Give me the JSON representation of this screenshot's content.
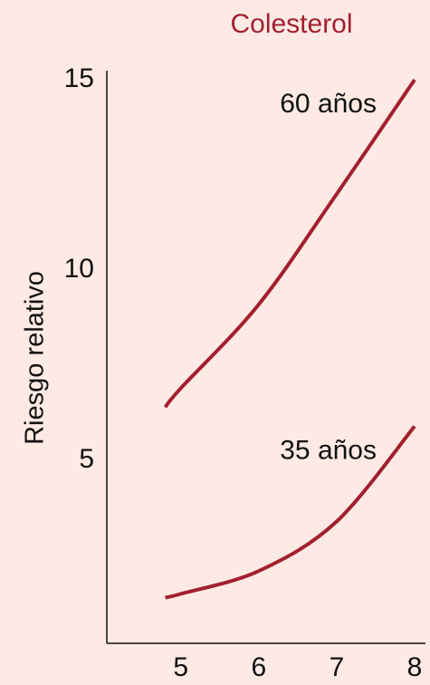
{
  "chart_data": {
    "type": "line",
    "title": "Colesterol",
    "y_label": "Riesgo relativo",
    "x": [
      4.8,
      5,
      6,
      7,
      8
    ],
    "series": [
      {
        "name": "60 años",
        "color": "#a3202e",
        "values": [
          6.4,
          6.9,
          9.1,
          12.0,
          15.0
        ]
      },
      {
        "name": "35 años",
        "color": "#a3202e",
        "values": [
          1.4,
          1.5,
          2.1,
          3.4,
          5.9
        ]
      }
    ],
    "xlim": [
      4.05,
      8
    ],
    "ylim": [
      0.2,
      15
    ],
    "xticks": [
      5,
      6,
      7,
      8
    ],
    "yticks": [
      5,
      10,
      15
    ],
    "title_color": "#a3202e"
  }
}
